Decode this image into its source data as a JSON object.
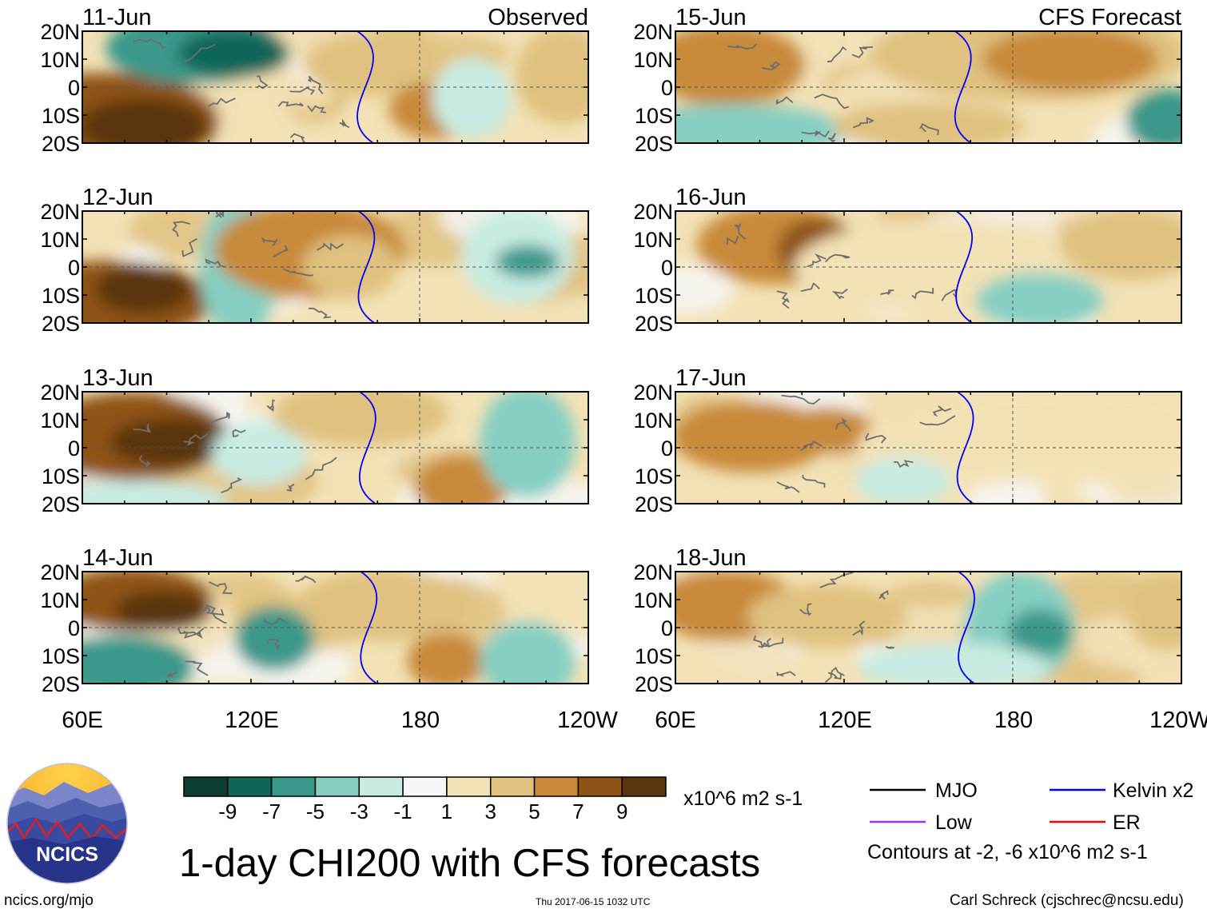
{
  "chart_data": {
    "type": "heatmap",
    "title": "1-day CHI200 with CFS forecasts",
    "units": "x10^6 m2 s-1",
    "variable": "CHI200",
    "column_headers": [
      "Observed",
      "CFS Forecast"
    ],
    "lat_ticks": [
      "20N",
      "10N",
      "0",
      "10S",
      "20S"
    ],
    "lon_ticks": [
      "60E",
      "120E",
      "180",
      "120W"
    ],
    "panels": [
      {
        "date": "11-Jun",
        "source": "Observed",
        "header": "Observed"
      },
      {
        "date": "12-Jun",
        "source": "Observed"
      },
      {
        "date": "13-Jun",
        "source": "Observed"
      },
      {
        "date": "14-Jun",
        "source": "Observed"
      },
      {
        "date": "15-Jun",
        "source": "CFS Forecast",
        "header": "CFS Forecast"
      },
      {
        "date": "16-Jun",
        "source": "CFS Forecast"
      },
      {
        "date": "17-Jun",
        "source": "CFS Forecast"
      },
      {
        "date": "18-Jun",
        "source": "CFS Forecast"
      }
    ],
    "colorbar": {
      "labels": [
        "-9",
        "-7",
        "-5",
        "-3",
        "-1",
        "1",
        "3",
        "5",
        "7",
        "9"
      ],
      "colors": [
        "#0b3d33",
        "#0f6659",
        "#3a988a",
        "#86cfc2",
        "#c8ece3",
        "#f7f7f7",
        "#f3e2b6",
        "#e0c17f",
        "#c88a3a",
        "#8e5316",
        "#5a3510"
      ]
    },
    "legend": [
      {
        "name": "MJO",
        "color": "#000000"
      },
      {
        "name": "Kelvin x2",
        "color": "#0000ff"
      },
      {
        "name": "Low",
        "color": "#9933ff"
      },
      {
        "name": "ER",
        "color": "#ff0000"
      }
    ],
    "contour_note": "Contours at -2, -6 x10^6 m2 s-1"
  },
  "footer": {
    "logo_text": "NCICS",
    "site": "ncics.org/mjo",
    "timestamp": "Thu 2017-06-15 1032 UTC",
    "credit": "Carl Schreck (cjschrec@ncsu.edu)"
  }
}
